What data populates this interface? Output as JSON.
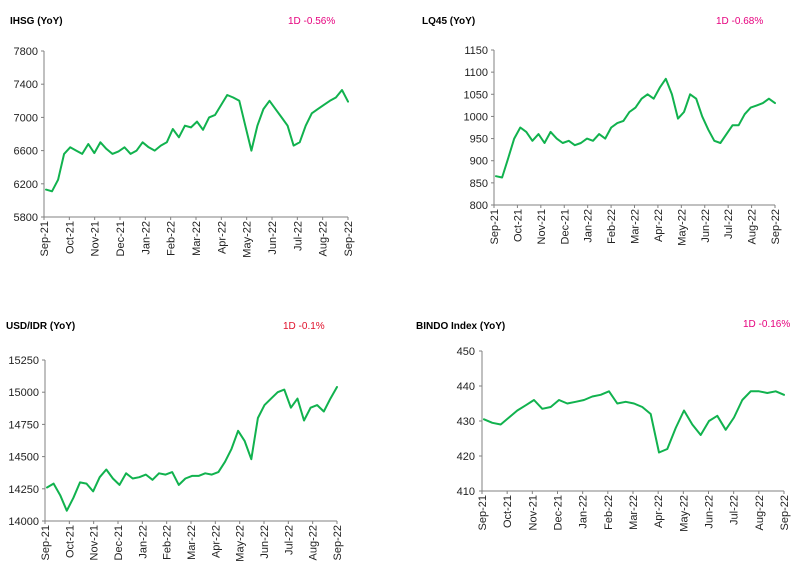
{
  "colors": {
    "line": "#11B24E",
    "axis": "#808080",
    "change_pink": "#E6007E",
    "change_red": "#E0102A"
  },
  "chart_data": [
    {
      "type": "line",
      "title": "IHSG (YoY)",
      "change_label": "1D -0.56%",
      "change_color": "#E6007E",
      "ylim": [
        5800,
        7800
      ],
      "yticks": [
        "7800",
        "7400",
        "7000",
        "6600",
        "6200",
        "5800"
      ],
      "xticks": [
        "Sep-21",
        "Oct-21",
        "Nov-21",
        "Dec-21",
        "Jan-22",
        "Feb-22",
        "Mar-22",
        "Apr-22",
        "May-22",
        "Jun-22",
        "Jul-22",
        "Aug-22",
        "Sep-22"
      ],
      "grid": false,
      "series": [
        {
          "values": [
            6130,
            6110,
            6250,
            6560,
            6640,
            6600,
            6560,
            6680,
            6570,
            6700,
            6620,
            6560,
            6590,
            6640,
            6560,
            6600,
            6700,
            6640,
            6600,
            6660,
            6700,
            6860,
            6760,
            6900,
            6880,
            6950,
            6850,
            7000,
            7030,
            7150,
            7270,
            7240,
            7200,
            6900,
            6600,
            6900,
            7100,
            7200,
            7100,
            7000,
            6900,
            6660,
            6700,
            6900,
            7050,
            7100,
            7150,
            7200,
            7240,
            7330,
            7190
          ]
        }
      ]
    },
    {
      "type": "line",
      "title": "LQ45 (YoY)",
      "change_label": "1D -0.68%",
      "change_color": "#E6007E",
      "ylim": [
        800,
        1150
      ],
      "yticks": [
        "1150",
        "1100",
        "1050",
        "1000",
        "950",
        "900",
        "850",
        "800"
      ],
      "xticks": [
        "Sep-21",
        "Oct-21",
        "Nov-21",
        "Dec-21",
        "Jan-22",
        "Feb-22",
        "Mar-22",
        "Apr-22",
        "May-22",
        "Jun-22",
        "Jul-22",
        "Aug-22",
        "Sep-22"
      ],
      "grid": false,
      "series": [
        {
          "values": [
            865,
            862,
            905,
            950,
            975,
            965,
            945,
            960,
            940,
            965,
            950,
            940,
            945,
            935,
            940,
            950,
            945,
            960,
            950,
            975,
            985,
            990,
            1010,
            1020,
            1040,
            1050,
            1040,
            1065,
            1085,
            1050,
            995,
            1010,
            1050,
            1040,
            1000,
            970,
            945,
            940,
            960,
            980,
            980,
            1005,
            1020,
            1025,
            1030,
            1040,
            1030
          ]
        }
      ]
    },
    {
      "type": "line",
      "title": "USD/IDR  (YoY)",
      "change_label": "1D -0.1%",
      "change_color": "#E0102A",
      "ylim": [
        14000,
        15250
      ],
      "yticks": [
        "15250",
        "15000",
        "14750",
        "14500",
        "14250",
        "14000"
      ],
      "xticks": [
        "Sep-21",
        "Oct-21",
        "Nov-21",
        "Dec-21",
        "Jan-22",
        "Feb-22",
        "Mar-22",
        "Apr-22",
        "May-22",
        "Jun-22",
        "Jul-22",
        "Aug-22",
        "Sep-22"
      ],
      "grid": false,
      "series": [
        {
          "values": [
            14260,
            14290,
            14200,
            14080,
            14180,
            14300,
            14290,
            14230,
            14340,
            14400,
            14330,
            14280,
            14370,
            14330,
            14340,
            14360,
            14320,
            14370,
            14360,
            14380,
            14280,
            14330,
            14350,
            14350,
            14370,
            14360,
            14380,
            14460,
            14560,
            14700,
            14620,
            14480,
            14800,
            14900,
            14950,
            15000,
            15020,
            14880,
            14950,
            14780,
            14880,
            14900,
            14850,
            14950,
            15040
          ]
        }
      ]
    },
    {
      "type": "line",
      "title": "BINDO Index (YoY)",
      "change_label": "1D -0.16%",
      "change_color": "#E6007E",
      "ylim": [
        410,
        450
      ],
      "yticks": [
        "450",
        "440",
        "430",
        "420",
        "410"
      ],
      "xticks": [
        "Sep-21",
        "Oct-21",
        "Nov-21",
        "Dec-21",
        "Jan-22",
        "Feb-22",
        "Mar-22",
        "Apr-22",
        "May-22",
        "Jun-22",
        "Jul-22",
        "Aug-22",
        "Sep-22"
      ],
      "grid": false,
      "series": [
        {
          "values": [
            430.5,
            429.5,
            429,
            431,
            433,
            434.5,
            436,
            433.5,
            434,
            436,
            435,
            435.5,
            436,
            437,
            437.5,
            438.5,
            435,
            435.5,
            435,
            434,
            432,
            421,
            422,
            428,
            433,
            429,
            426,
            430,
            431.5,
            427.5,
            431,
            436,
            438.5,
            438.5,
            438,
            438.5,
            437.5
          ]
        }
      ]
    }
  ]
}
